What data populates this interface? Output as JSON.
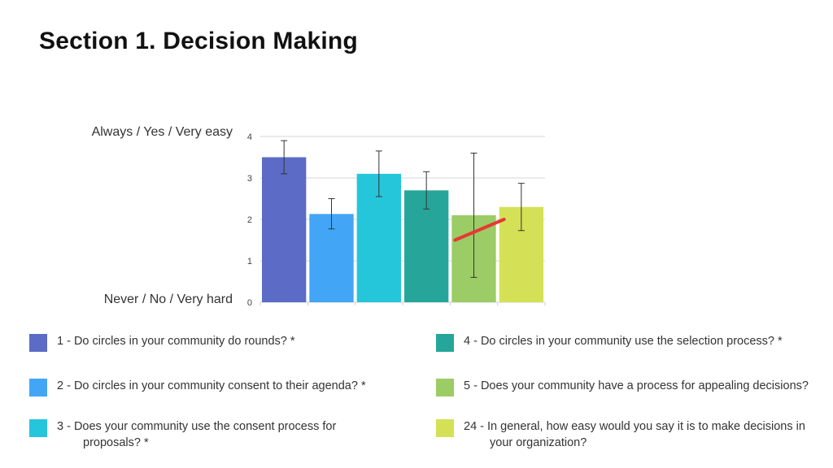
{
  "title": "Section 1. Decision Making",
  "y_scale_labels": {
    "top": "Always / Yes / Very easy",
    "bottom": "Never / No / Very hard"
  },
  "chart_data": {
    "type": "bar",
    "title": "",
    "ylim": [
      0,
      4
    ],
    "yticks": [
      0,
      1,
      2,
      3,
      4
    ],
    "grid": true,
    "legend_position": "bottom",
    "series": [
      {
        "name": "1 - Do circles in your community do rounds? *",
        "value": 3.5,
        "error": [
          3.1,
          3.9
        ],
        "color": "#5b6bc6"
      },
      {
        "name": "2 - Do circles in your community consent to their agenda? *",
        "value": 2.13,
        "error": [
          1.77,
          2.5
        ],
        "color": "#42a5f5"
      },
      {
        "name": "3 - Does your community use the consent process for proposals? *",
        "value": 3.1,
        "error": [
          2.55,
          3.65
        ],
        "color": "#26c6da"
      },
      {
        "name": "4 - Do circles in your community use the selection process? *",
        "value": 2.7,
        "error": [
          2.25,
          3.15
        ],
        "color": "#26a69a"
      },
      {
        "name": "5 - Does your community have a process for appealing decisions?",
        "value": 2.1,
        "error": [
          0.6,
          3.6
        ],
        "color": "#9ccc65"
      },
      {
        "name": "24 - In general, how easy would you say it is to make decisions in your organization?",
        "value": 2.3,
        "error": [
          1.73,
          2.87
        ],
        "color": "#d4e157"
      }
    ],
    "annotation": {
      "type": "line",
      "color": "#e53935",
      "from": {
        "series": 5,
        "y": 1.5
      },
      "to": {
        "series": 6,
        "y": 2.0
      }
    }
  }
}
